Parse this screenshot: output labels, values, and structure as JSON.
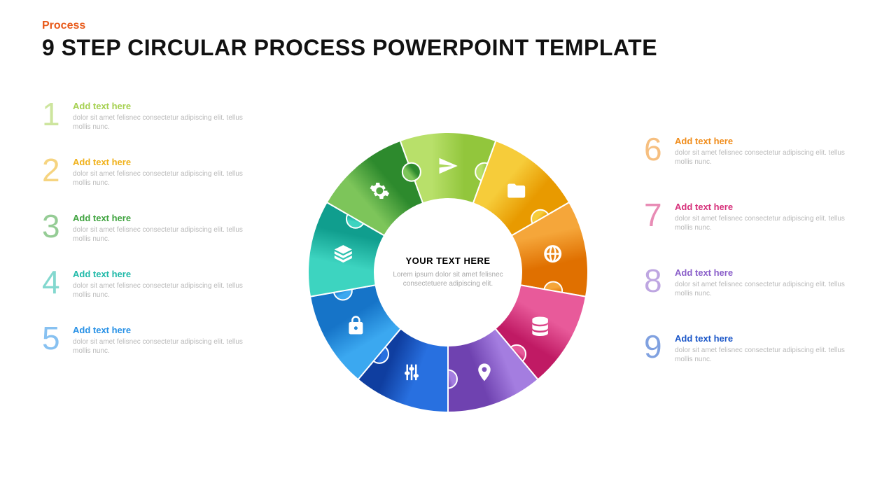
{
  "header": {
    "pretitle": "Process",
    "pretitle_color": "#e85a1a",
    "title": "9 STEP CIRCULAR PROCESS POWERPOINT TEMPLATE",
    "title_color": "#111111"
  },
  "center": {
    "title": "YOUR TEXT HERE",
    "desc": "Lorem ipsum dolor sit amet felisnec consectetuere adipiscing elit."
  },
  "common_desc": "dolor sit amet felisnec consectetur adipiscing elit. tellus mollis nunc.",
  "ring": {
    "outer_r": 200,
    "inner_r": 105,
    "icon_r": 152,
    "segments": 9,
    "start_deg": -110
  },
  "steps": [
    {
      "n": "1",
      "title": "Add text here",
      "color": "#a5d050",
      "grad_from": "#b8e06a",
      "grad_to": "#92c63c",
      "icon": "plane"
    },
    {
      "n": "2",
      "title": "Add text here",
      "color": "#f0b11a",
      "grad_from": "#f6cc3a",
      "grad_to": "#e89a00",
      "icon": "folder"
    },
    {
      "n": "3",
      "title": "Add text here",
      "color": "#3fa33f",
      "grad_from": "#7dc55a",
      "grad_to": "#2d8a2d",
      "icon": "gear"
    },
    {
      "n": "4",
      "title": "Add text here",
      "color": "#1fb9a8",
      "grad_from": "#3dd4c0",
      "grad_to": "#109e8e",
      "icon": "layers"
    },
    {
      "n": "5",
      "title": "Add text here",
      "color": "#2690e6",
      "grad_from": "#3ba8f0",
      "grad_to": "#1674c8",
      "icon": "lock"
    },
    {
      "n": "6",
      "title": "Add text here",
      "color": "#f08c1a",
      "grad_from": "#f5a63a",
      "grad_to": "#e07000",
      "icon": "globe"
    },
    {
      "n": "7",
      "title": "Add text here",
      "color": "#d6307a",
      "grad_from": "#e85a9a",
      "grad_to": "#c01a64",
      "icon": "database"
    },
    {
      "n": "8",
      "title": "Add text here",
      "color": "#8a5ec9",
      "grad_from": "#a47de0",
      "grad_to": "#6f42b0",
      "icon": "pin"
    },
    {
      "n": "9",
      "title": "Add text here",
      "color": "#1a56c8",
      "grad_from": "#2870e0",
      "grad_to": "#0f3ea0",
      "icon": "sliders"
    }
  ],
  "left_order": [
    0,
    1,
    2,
    3,
    4
  ],
  "right_order": [
    5,
    6,
    7,
    8
  ],
  "ring_order": [
    0,
    1,
    5,
    6,
    7,
    8,
    4,
    3,
    2
  ]
}
